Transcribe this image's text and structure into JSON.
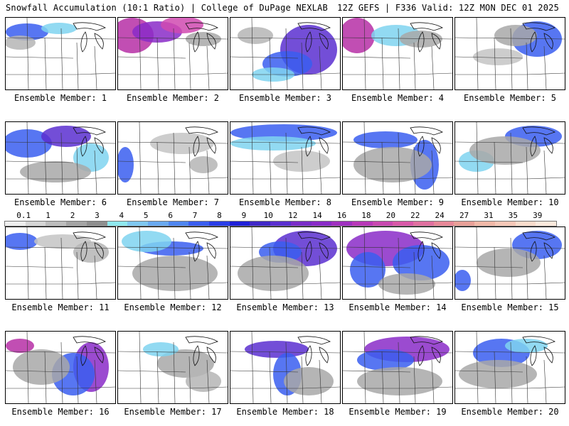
{
  "header": {
    "title_left": "Snowfall Accumulation (10:1 Ratio) | College of DuPage NEXLAB",
    "title_right": "12Z GEFS | F336 Valid: 12Z MON DEC 01 2025"
  },
  "members": [
    {
      "label": "Ensemble Member: 1",
      "blobs": [
        [
          30,
          20,
          30,
          12,
          "#3a5ef0"
        ],
        [
          75,
          15,
          25,
          8,
          "#7fd4f0"
        ],
        [
          20,
          35,
          22,
          10,
          "#b5b5b5"
        ]
      ]
    },
    {
      "label": "Ensemble Member: 2",
      "blobs": [
        [
          20,
          25,
          30,
          25,
          "#b62fa6"
        ],
        [
          55,
          20,
          35,
          15,
          "#8a2bc8"
        ],
        [
          90,
          10,
          30,
          12,
          "#d04ab0"
        ],
        [
          120,
          30,
          25,
          10,
          "#a8a8a8"
        ]
      ]
    },
    {
      "label": "Ensemble Member: 3",
      "blobs": [
        [
          110,
          45,
          40,
          35,
          "#5a2fd0"
        ],
        [
          80,
          65,
          35,
          18,
          "#3a5ef0"
        ],
        [
          60,
          80,
          30,
          10,
          "#7fd4f0"
        ],
        [
          35,
          25,
          25,
          12,
          "#b5b5b5"
        ]
      ]
    },
    {
      "label": "Ensemble Member: 4",
      "blobs": [
        [
          20,
          25,
          25,
          25,
          "#b62fa6"
        ],
        [
          75,
          25,
          35,
          15,
          "#7fd4f0"
        ],
        [
          110,
          30,
          30,
          12,
          "#a8a8a8"
        ]
      ]
    },
    {
      "label": "Ensemble Member: 5",
      "blobs": [
        [
          115,
          30,
          35,
          25,
          "#3a5ef0"
        ],
        [
          85,
          25,
          30,
          15,
          "#a8a8a8"
        ],
        [
          60,
          55,
          35,
          12,
          "#c4c4c4"
        ]
      ]
    },
    {
      "label": "Ensemble Member: 6",
      "blobs": [
        [
          30,
          30,
          35,
          20,
          "#3a5ef0"
        ],
        [
          85,
          20,
          35,
          15,
          "#5a2fd0"
        ],
        [
          120,
          50,
          25,
          20,
          "#7fd4f0"
        ],
        [
          70,
          70,
          50,
          15,
          "#a8a8a8"
        ]
      ]
    },
    {
      "label": "Ensemble Member: 7",
      "blobs": [
        [
          10,
          60,
          12,
          25,
          "#3a5ef0"
        ],
        [
          90,
          30,
          45,
          15,
          "#c4c4c4"
        ],
        [
          120,
          60,
          20,
          12,
          "#b5b5b5"
        ]
      ]
    },
    {
      "label": "Ensemble Member: 8",
      "blobs": [
        [
          75,
          15,
          75,
          12,
          "#3a5ef0"
        ],
        [
          60,
          30,
          60,
          10,
          "#7fd4f0"
        ],
        [
          100,
          55,
          40,
          15,
          "#c4c4c4"
        ]
      ]
    },
    {
      "label": "Ensemble Member: 9",
      "blobs": [
        [
          60,
          25,
          45,
          12,
          "#3a5ef0"
        ],
        [
          115,
          60,
          20,
          35,
          "#3a5ef0"
        ],
        [
          70,
          60,
          55,
          25,
          "#a8a8a8"
        ]
      ]
    },
    {
      "label": "Ensemble Member: 10",
      "blobs": [
        [
          110,
          20,
          40,
          15,
          "#3a5ef0"
        ],
        [
          30,
          55,
          25,
          15,
          "#7fd4f0"
        ],
        [
          70,
          40,
          50,
          20,
          "#a8a8a8"
        ]
      ]
    },
    {
      "label": "Ensemble Member: 11",
      "blobs": [
        [
          20,
          20,
          25,
          12,
          "#3a5ef0"
        ],
        [
          80,
          20,
          40,
          10,
          "#c4c4c4"
        ],
        [
          120,
          35,
          25,
          15,
          "#b5b5b5"
        ]
      ]
    },
    {
      "label": "Ensemble Member: 12",
      "blobs": [
        [
          75,
          30,
          45,
          10,
          "#3a5ef0"
        ],
        [
          40,
          20,
          35,
          15,
          "#7fd4f0"
        ],
        [
          80,
          65,
          60,
          25,
          "#a8a8a8"
        ]
      ]
    },
    {
      "label": "Ensemble Member: 13",
      "blobs": [
        [
          105,
          30,
          45,
          25,
          "#5a2fd0"
        ],
        [
          70,
          35,
          30,
          15,
          "#3a5ef0"
        ],
        [
          60,
          65,
          50,
          25,
          "#a8a8a8"
        ]
      ]
    },
    {
      "label": "Ensemble Member: 14",
      "blobs": [
        [
          60,
          30,
          55,
          25,
          "#8a2bc8"
        ],
        [
          35,
          60,
          25,
          25,
          "#3a5ef0"
        ],
        [
          110,
          50,
          40,
          25,
          "#3a5ef0"
        ],
        [
          90,
          80,
          40,
          15,
          "#a8a8a8"
        ]
      ]
    },
    {
      "label": "Ensemble Member: 15",
      "blobs": [
        [
          115,
          25,
          35,
          20,
          "#3a5ef0"
        ],
        [
          75,
          50,
          45,
          20,
          "#a8a8a8"
        ],
        [
          10,
          75,
          12,
          15,
          "#3a5ef0"
        ]
      ]
    },
    {
      "label": "Ensemble Member: 16",
      "blobs": [
        [
          120,
          50,
          25,
          35,
          "#8a2bc8"
        ],
        [
          95,
          60,
          30,
          30,
          "#3a5ef0"
        ],
        [
          20,
          20,
          20,
          10,
          "#b62fa6"
        ],
        [
          50,
          50,
          40,
          25,
          "#a8a8a8"
        ]
      ]
    },
    {
      "label": "Ensemble Member: 17",
      "blobs": [
        [
          95,
          45,
          40,
          20,
          "#a8a8a8"
        ],
        [
          60,
          25,
          25,
          10,
          "#7fd4f0"
        ],
        [
          120,
          70,
          25,
          15,
          "#b5b5b5"
        ]
      ]
    },
    {
      "label": "Ensemble Member: 18",
      "blobs": [
        [
          65,
          25,
          45,
          12,
          "#5a2fd0"
        ],
        [
          80,
          60,
          20,
          30,
          "#3a5ef0"
        ],
        [
          110,
          70,
          35,
          20,
          "#a8a8a8"
        ]
      ]
    },
    {
      "label": "Ensemble Member: 19",
      "blobs": [
        [
          90,
          25,
          60,
          18,
          "#8a2bc8"
        ],
        [
          60,
          40,
          40,
          15,
          "#3a5ef0"
        ],
        [
          80,
          70,
          60,
          20,
          "#a8a8a8"
        ]
      ]
    },
    {
      "label": "Ensemble Member: 20",
      "blobs": [
        [
          65,
          30,
          40,
          20,
          "#3a5ef0"
        ],
        [
          100,
          20,
          30,
          10,
          "#7fd4f0"
        ],
        [
          60,
          60,
          55,
          20,
          "#a8a8a8"
        ]
      ]
    }
  ],
  "scale": {
    "labels": [
      "0.1",
      "1",
      "2",
      "3",
      "4",
      "5",
      "6",
      "7",
      "8",
      "9",
      "10",
      "12",
      "14",
      "16",
      "18",
      "20",
      "22",
      "24",
      "27",
      "31",
      "35",
      "39"
    ],
    "colors": [
      "#eeeeee",
      "#d6d6d6",
      "#bdbdbd",
      "#a4a4a4",
      "#8f8f8f",
      "#8fe8ee",
      "#7fc8f0",
      "#6aaaf0",
      "#4f86f0",
      "#3a5ef0",
      "#2a3ee8",
      "#1f20d8",
      "#4028c8",
      "#5a2fd0",
      "#7a2dc8",
      "#8a2bc8",
      "#a030c0",
      "#b838b8",
      "#c848b0",
      "#d858a8",
      "#e070a0",
      "#e88898",
      "#e8a098",
      "#f0b8a8",
      "#f5c8b8",
      "#f8dccc",
      "#fbeadd"
    ]
  }
}
